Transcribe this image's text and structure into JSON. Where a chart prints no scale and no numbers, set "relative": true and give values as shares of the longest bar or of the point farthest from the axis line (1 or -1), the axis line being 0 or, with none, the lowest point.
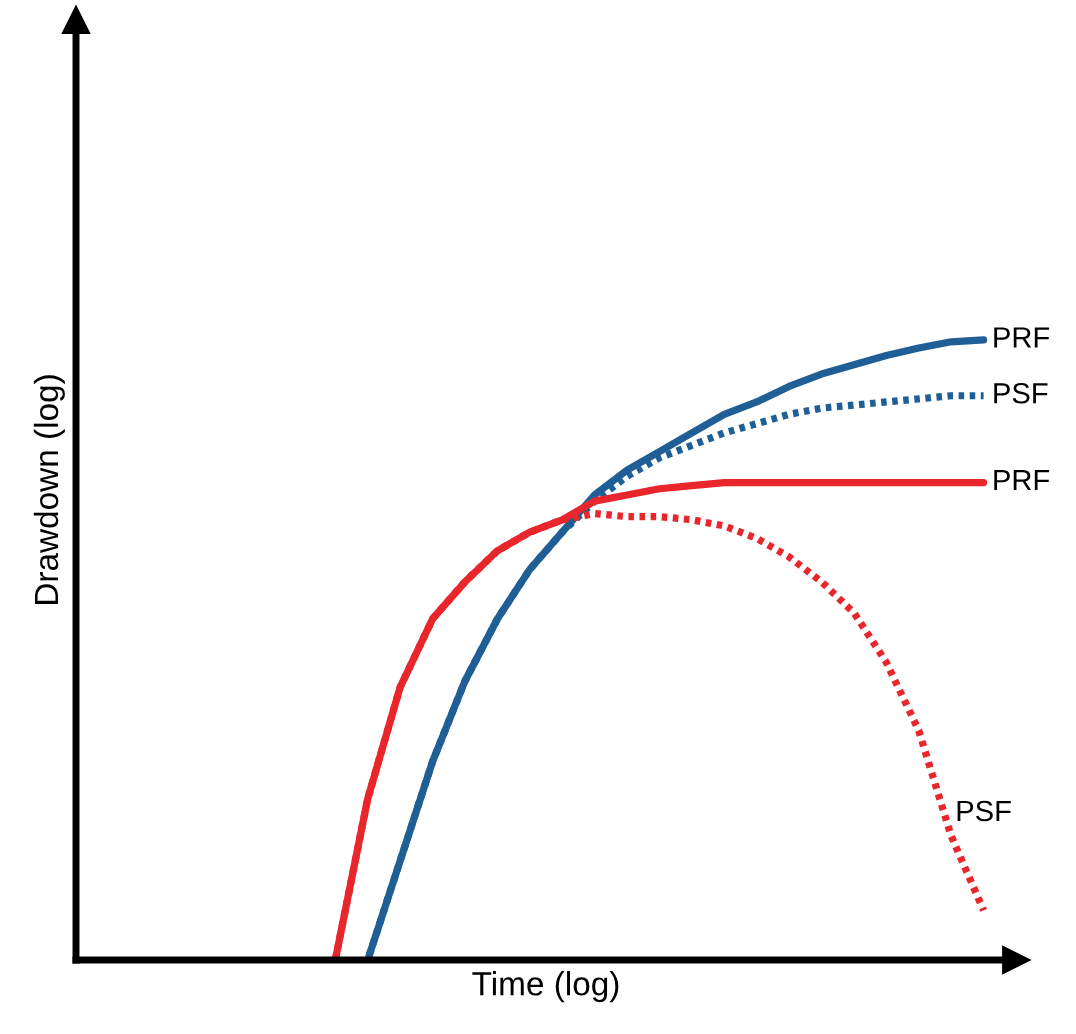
{
  "chart_data": {
    "type": "line",
    "relative": true,
    "xlabel": "Time (log)",
    "ylabel": "Drawdown (log)",
    "legend": false,
    "marker": "none",
    "tick_labels": false,
    "categories": [
      null,
      null,
      null,
      null,
      null,
      null,
      null,
      null,
      null,
      null,
      null,
      null,
      null,
      null,
      null,
      null,
      null,
      null,
      null,
      null,
      null,
      null,
      null,
      null,
      null,
      null,
      null,
      null,
      null,
      null
    ],
    "series": [
      {
        "name": "PRF",
        "color": "#1f5f95",
        "line_style": "solid",
        "values": [
          null,
          null,
          null,
          null,
          null,
          null,
          null,
          null,
          null,
          0,
          0.16,
          0.32,
          0.45,
          0.55,
          0.63,
          0.69,
          0.75,
          0.79,
          0.82,
          0.85,
          0.88,
          0.9,
          0.925,
          0.945,
          0.96,
          0.975,
          0.987,
          0.997,
          1,
          null
        ]
      },
      {
        "name": "PSF",
        "color": "#1f5f95",
        "line_style": "dotted",
        "values": [
          null,
          null,
          null,
          null,
          null,
          null,
          null,
          null,
          null,
          0,
          0.16,
          0.32,
          0.45,
          0.55,
          0.63,
          0.69,
          0.74,
          0.78,
          0.81,
          0.83,
          0.85,
          0.865,
          0.88,
          0.89,
          0.895,
          0.9,
          0.905,
          0.91,
          0.91,
          null
        ]
      },
      {
        "name": "PRF",
        "color": "#e8262b",
        "line_style": "solid",
        "values": [
          null,
          null,
          null,
          null,
          null,
          null,
          null,
          null,
          0,
          0.26,
          0.44,
          0.55,
          0.61,
          0.66,
          0.69,
          0.71,
          0.74,
          0.75,
          0.76,
          0.765,
          0.77,
          0.77,
          0.77,
          0.77,
          0.77,
          0.77,
          0.77,
          0.77,
          0.77,
          null
        ]
      },
      {
        "name": "PSF",
        "color": "#e8262b",
        "line_style": "dotted",
        "values": [
          null,
          null,
          null,
          null,
          null,
          null,
          null,
          null,
          0,
          0.26,
          0.44,
          0.55,
          0.61,
          0.66,
          0.69,
          0.71,
          0.72,
          0.715,
          0.715,
          0.71,
          0.7,
          0.68,
          0.65,
          0.61,
          0.56,
          0.48,
          0.37,
          0.2,
          0.08,
          null
        ]
      }
    ]
  }
}
